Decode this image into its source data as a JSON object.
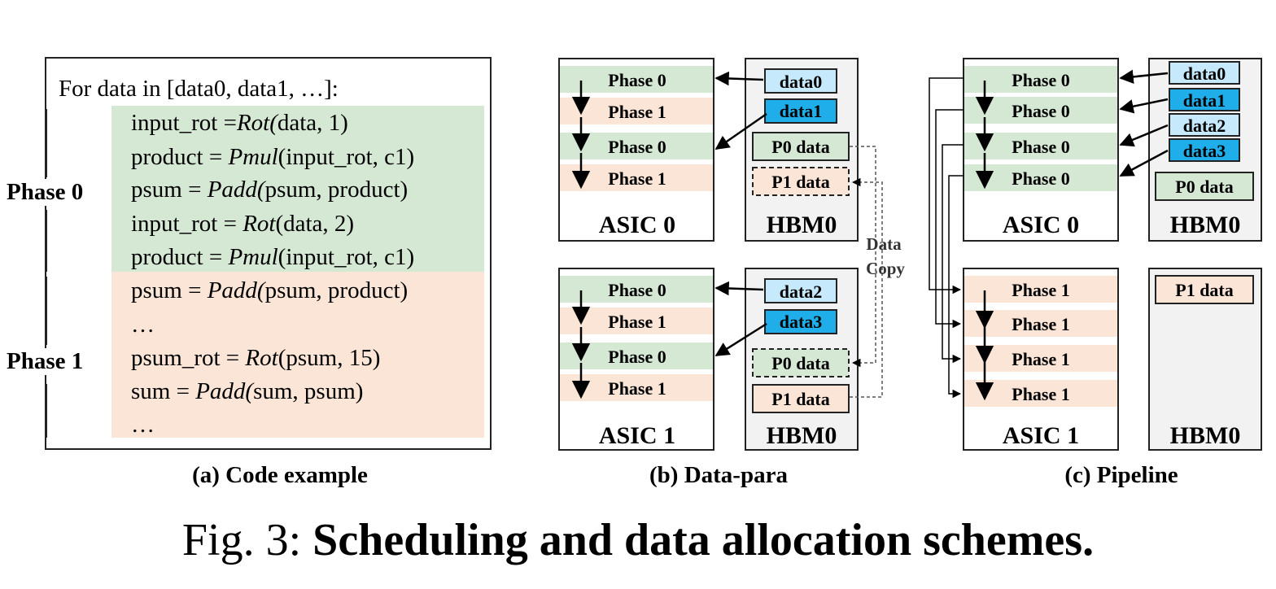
{
  "colors": {
    "phase0_bg": "#d5e8d4",
    "phase1_bg": "#fbe5d6",
    "data_light": "#c6e9fb",
    "data_dark": "#1faee9",
    "hbm_bg": "#f2f2f2"
  },
  "code_example": {
    "header": "For data in [data0, data1, …]:",
    "lines": [
      {
        "pre": "input_rot =",
        "fn": "Rot(",
        "post": "data, 1)"
      },
      {
        "pre": "product = ",
        "fn": "Pmul",
        "post": "(input_rot, c1)"
      },
      {
        "pre": "psum = ",
        "fn": "Padd(",
        "post": "psum, product)"
      },
      {
        "pre": "input_rot = ",
        "fn": "Rot",
        "post": "(data, 2)"
      },
      {
        "pre": "product = ",
        "fn": "Pmul",
        "post": "(input_rot, c1)"
      },
      {
        "pre": "psum = ",
        "fn": "Padd(",
        "post": "psum, product)"
      },
      {
        "pre": "…",
        "fn": "",
        "post": ""
      },
      {
        "pre": "psum_rot = ",
        "fn": "Rot",
        "post": "(psum, 15)"
      },
      {
        "pre": "sum = ",
        "fn": "Padd(",
        "post": "sum, psum)"
      },
      {
        "pre": "…",
        "fn": "",
        "post": ""
      }
    ],
    "phase0_label": "Phase 0",
    "phase1_label": "Phase 1",
    "caption": "(a) Code example"
  },
  "data_para": {
    "caption": "(b) Data-para",
    "data_copy_label": [
      "Data",
      "Copy"
    ],
    "asics": [
      {
        "name": "ASIC 0",
        "hbm": "HBM0",
        "phases": [
          "Phase 0",
          "Phase 1",
          "Phase 0",
          "Phase 1"
        ],
        "data": [
          "data0",
          "data1"
        ],
        "stores": [
          "P0 data",
          "P1 data"
        ]
      },
      {
        "name": "ASIC 1",
        "hbm": "HBM0",
        "phases": [
          "Phase 0",
          "Phase 1",
          "Phase 0",
          "Phase 1"
        ],
        "data": [
          "data2",
          "data3"
        ],
        "stores": [
          "P0 data",
          "P1 data"
        ]
      }
    ]
  },
  "pipeline": {
    "caption": "(c) Pipeline",
    "asics": [
      {
        "name": "ASIC 0",
        "hbm": "HBM0",
        "phases": [
          "Phase 0",
          "Phase 0",
          "Phase 0",
          "Phase 0"
        ],
        "data": [
          "data0",
          "data1",
          "data2",
          "data3"
        ],
        "stores": [
          "P0 data"
        ]
      },
      {
        "name": "ASIC 1",
        "hbm": "HBM0",
        "phases": [
          "Phase 1",
          "Phase 1",
          "Phase 1",
          "Phase 1"
        ],
        "data": [],
        "stores": [
          "P1 data"
        ]
      }
    ]
  },
  "figure_caption": {
    "prefix": "Fig. 3: ",
    "title": "Scheduling and data allocation schemes."
  }
}
